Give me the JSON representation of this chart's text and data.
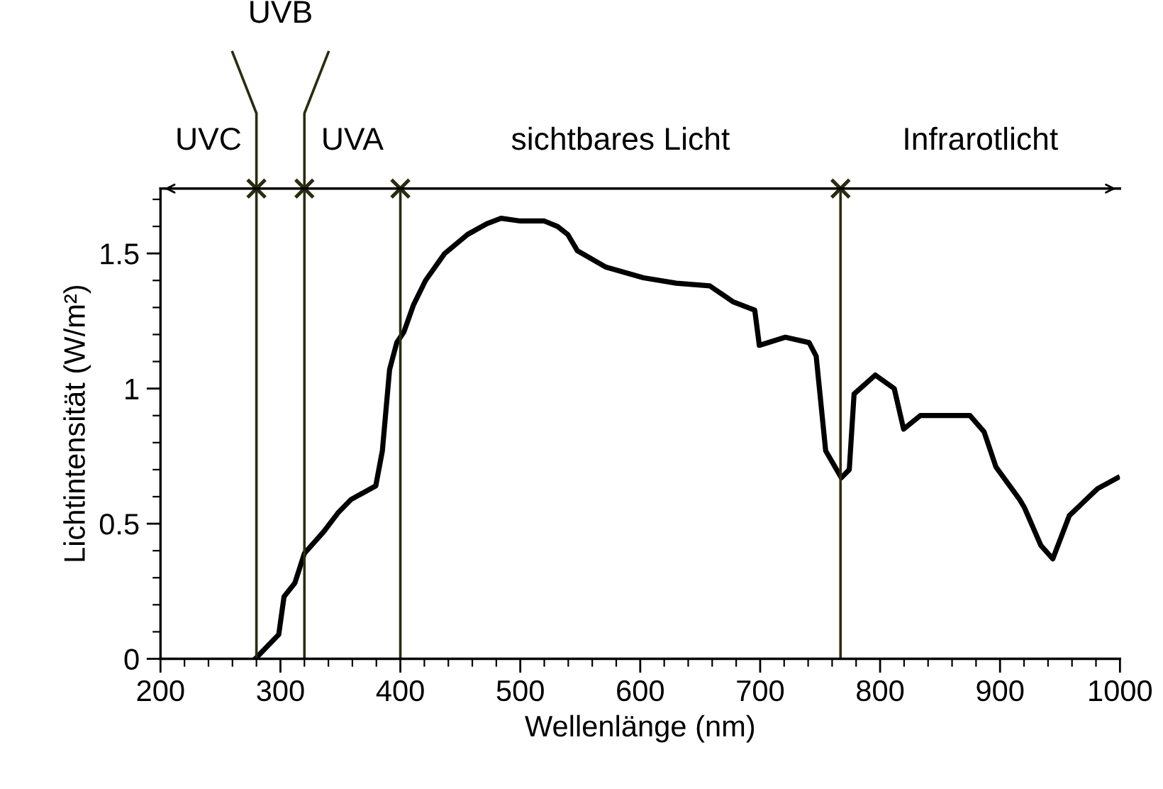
{
  "chart_data": {
    "type": "line",
    "xlabel": "Wellenlänge (nm)",
    "ylabel": "Lichtintensität (W/m²)",
    "x": [
      279,
      298.6,
      303,
      312,
      320,
      336,
      348,
      359,
      379.5,
      385,
      391,
      397,
      403,
      411,
      421,
      437,
      456,
      472,
      484,
      500,
      520,
      531,
      539.6,
      547.6,
      571,
      602.7,
      630,
      658,
      677.8,
      695.5,
      699.3,
      721,
      740.8,
      746.7,
      754.6,
      767.7,
      774.3,
      778.3,
      796,
      811.8,
      819.6,
      833.5,
      874.9,
      886.7,
      896.6,
      916.3,
      920.3,
      934,
      944,
      957.8,
      981.4,
      998
    ],
    "series": [
      {
        "color": "#000000",
        "values": [
          0,
          0.09,
          0.23,
          0.28,
          0.39,
          0.47,
          0.54,
          0.59,
          0.64,
          0.77,
          1.07,
          1.17,
          1.21,
          1.31,
          1.4,
          1.5,
          1.57,
          1.61,
          1.63,
          1.62,
          1.62,
          1.6,
          1.57,
          1.51,
          1.45,
          1.41,
          1.39,
          1.38,
          1.32,
          1.29,
          1.16,
          1.19,
          1.17,
          1.12,
          0.77,
          0.67,
          0.7,
          0.98,
          1.05,
          1.0,
          0.85,
          0.9,
          0.9,
          0.84,
          0.71,
          0.59,
          0.56,
          0.42,
          0.37,
          0.53,
          0.63,
          0.67
        ]
      }
    ],
    "xlim": [
      200,
      1000
    ],
    "ylim": [
      0,
      1.74
    ],
    "xticks": [
      200,
      {
        "value": 220,
        "label": null
      },
      {
        "value": 240,
        "label": null
      },
      {
        "value": 260,
        "label": null
      },
      {
        "value": 280,
        "label": null
      },
      300,
      {
        "value": 320,
        "label": null
      },
      {
        "value": 340,
        "label": null
      },
      {
        "value": 360,
        "label": null
      },
      {
        "value": 380,
        "label": null
      },
      400,
      {
        "value": 420,
        "label": null
      },
      {
        "value": 440,
        "label": null
      },
      {
        "value": 460,
        "label": null
      },
      {
        "value": 480,
        "label": null
      },
      500,
      {
        "value": 520,
        "label": null
      },
      {
        "value": 540,
        "label": null
      },
      {
        "value": 560,
        "label": null
      },
      {
        "value": 580,
        "label": null
      },
      600,
      {
        "value": 620,
        "label": null
      },
      {
        "value": 640,
        "label": null
      },
      {
        "value": 660,
        "label": null
      },
      {
        "value": 680,
        "label": null
      },
      700,
      {
        "value": 720,
        "label": null
      },
      {
        "value": 740,
        "label": null
      },
      {
        "value": 760,
        "label": null
      },
      {
        "value": 780,
        "label": null
      },
      800,
      {
        "value": 820,
        "label": null
      },
      {
        "value": 840,
        "label": null
      },
      {
        "value": 860,
        "label": null
      },
      {
        "value": 880,
        "label": null
      },
      900,
      {
        "value": 920,
        "label": null
      },
      {
        "value": 940,
        "label": null
      },
      {
        "value": 960,
        "label": null
      },
      {
        "value": 980,
        "label": null
      },
      1000
    ],
    "yticks": [
      0,
      {
        "value": 0.1,
        "label": null
      },
      {
        "value": 0.2,
        "label": null
      },
      {
        "value": 0.3,
        "label": null
      },
      {
        "value": 0.4,
        "label": null
      },
      0.5,
      {
        "value": 0.6,
        "label": null
      },
      {
        "value": 0.7,
        "label": null
      },
      {
        "value": 0.8,
        "label": null
      },
      {
        "value": 0.9,
        "label": null
      },
      1,
      {
        "value": 1.1,
        "label": null
      },
      {
        "value": 1.2,
        "label": null
      },
      {
        "value": 1.3,
        "label": null
      },
      {
        "value": 1.4,
        "label": null
      },
      1.5,
      {
        "value": 1.6,
        "label": null
      },
      {
        "value": 1.7,
        "label": null
      }
    ],
    "ref_lines": [
      {
        "axis": "x",
        "value": 280,
        "color": "#2b2b10"
      },
      {
        "axis": "x",
        "value": 320,
        "color": "#2b2b10"
      },
      {
        "axis": "x",
        "value": 400,
        "color": "#2b2b10"
      },
      {
        "axis": "x",
        "value": 767,
        "color": "#2b2b10"
      }
    ],
    "annotations": [
      "UVC",
      "UVB",
      "UVA",
      "sichtbares Licht",
      "Infrarotlicht"
    ],
    "grid": false,
    "legend": false,
    "marker": "none",
    "line_style": "solid"
  }
}
